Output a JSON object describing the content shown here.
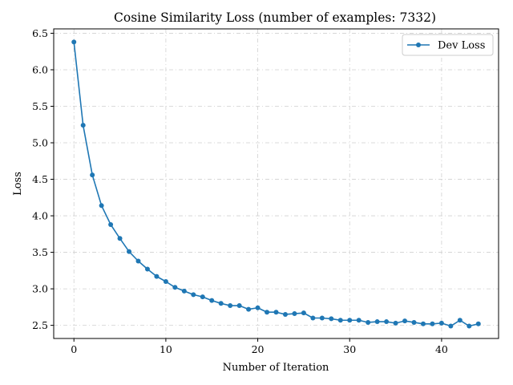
{
  "chart_data": {
    "type": "line",
    "title": "Cosine Similarity Loss (number of examples: 7332)",
    "xlabel": "Number of Iteration",
    "ylabel": "Loss",
    "xlim": [
      -2.2,
      46.2
    ],
    "ylim": [
      2.32,
      6.56
    ],
    "xticks": [
      0,
      10,
      20,
      30,
      40
    ],
    "yticks": [
      2.5,
      3.0,
      3.5,
      4.0,
      4.5,
      5.0,
      5.5,
      6.0,
      6.5
    ],
    "xtick_labels": [
      "0",
      "10",
      "20",
      "30",
      "40"
    ],
    "ytick_labels": [
      "2.5",
      "3.0",
      "3.5",
      "4.0",
      "4.5",
      "5.0",
      "5.5",
      "6.0",
      "6.5"
    ],
    "grid": true,
    "legend_position": "top-right",
    "series": [
      {
        "name": "Dev Loss",
        "color": "#1f77b4",
        "marker": "circle",
        "x": [
          0,
          1,
          2,
          3,
          4,
          5,
          6,
          7,
          8,
          9,
          10,
          11,
          12,
          13,
          14,
          15,
          16,
          17,
          18,
          19,
          20,
          21,
          22,
          23,
          24,
          25,
          26,
          27,
          28,
          29,
          30,
          31,
          32,
          33,
          34,
          35,
          36,
          37,
          38,
          39,
          40,
          41,
          42,
          43,
          44
        ],
        "y": [
          6.38,
          5.24,
          4.56,
          4.14,
          3.88,
          3.69,
          3.51,
          3.38,
          3.27,
          3.17,
          3.1,
          3.02,
          2.97,
          2.92,
          2.89,
          2.84,
          2.8,
          2.77,
          2.77,
          2.72,
          2.74,
          2.68,
          2.68,
          2.65,
          2.66,
          2.67,
          2.6,
          2.6,
          2.59,
          2.57,
          2.57,
          2.57,
          2.54,
          2.55,
          2.55,
          2.53,
          2.56,
          2.54,
          2.52,
          2.52,
          2.53,
          2.49,
          2.57,
          2.49,
          2.52
        ]
      }
    ]
  }
}
